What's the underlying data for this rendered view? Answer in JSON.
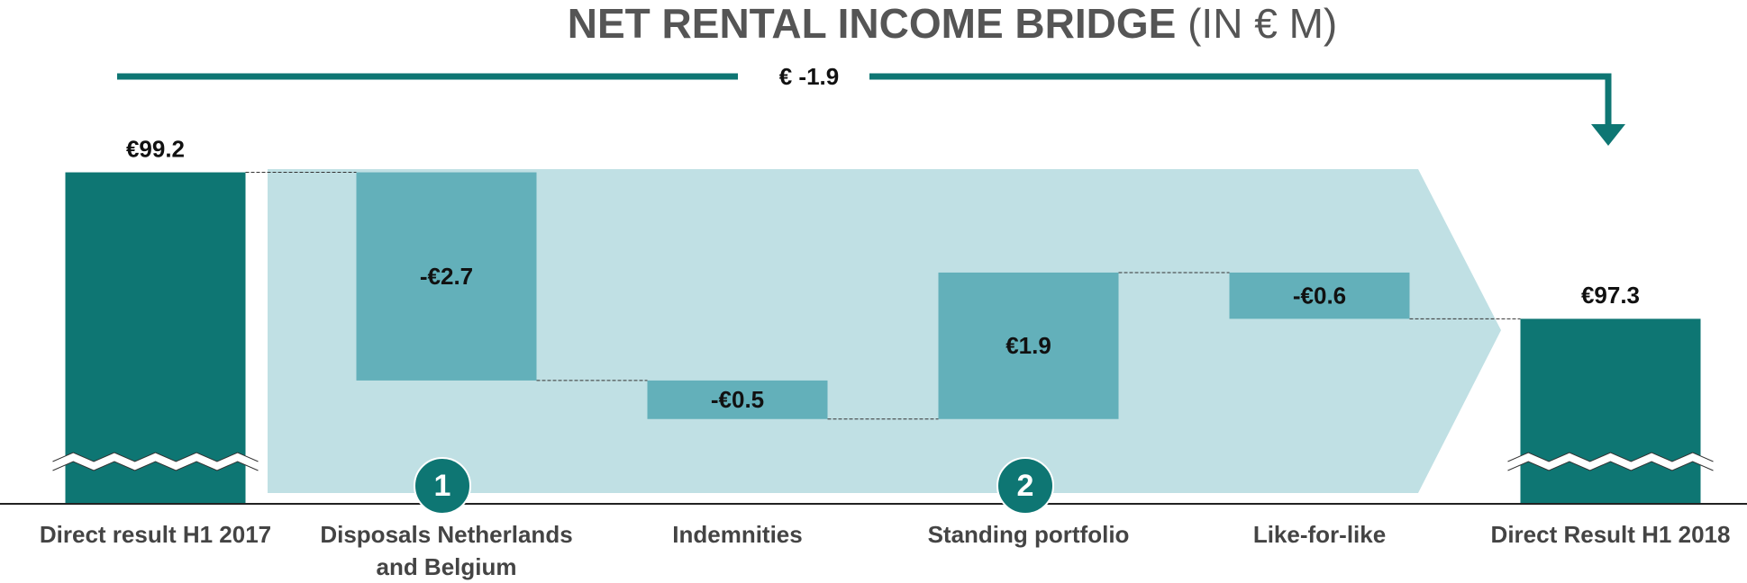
{
  "chart_data": {
    "type": "waterfall",
    "title": "NET RENTAL INCOME BRIDGE",
    "title_unit": "(IN € M)",
    "annotation": "€ -1.9",
    "step_markers": [
      "1",
      "2"
    ],
    "categories": [
      "Direct result H1 2017",
      "Disposals Netherlands and Belgium",
      "Indemnities",
      "Standing portfolio",
      "Like-for-like",
      "Direct Result H1 2018"
    ],
    "measure": [
      "absolute",
      "relative",
      "relative",
      "relative",
      "relative",
      "absolute"
    ],
    "values": [
      99.2,
      -2.7,
      -0.5,
      1.9,
      -0.6,
      97.3
    ],
    "value_labels": [
      "€99.2",
      "-€2.7",
      "-€0.5",
      "€1.9",
      "-€0.6",
      "€97.3"
    ],
    "total_color": "#0e7673",
    "delta_color": "#63b0ba",
    "band_color": "#c0e0e4",
    "ylim": [
      94.9,
      100
    ]
  }
}
